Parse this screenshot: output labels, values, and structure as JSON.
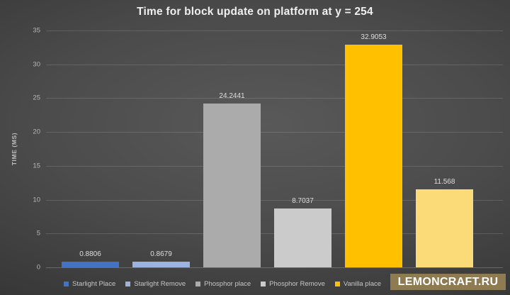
{
  "chart_data": {
    "type": "bar",
    "title": "Time for block update on platform at y = 254",
    "xlabel": "",
    "ylabel": "TIME (MS)",
    "ylim": [
      0,
      35
    ],
    "ytick_step": 5,
    "yticks_top_to_bottom": [
      35,
      30,
      25,
      20,
      15,
      10,
      5,
      0
    ],
    "grid": true,
    "legend_position": "bottom",
    "bars": [
      {
        "name": "Starlight Place",
        "value": 0.8806,
        "label": "0.8806",
        "color": "#4472C4"
      },
      {
        "name": "Starlight Remove",
        "value": 0.8679,
        "label": "0.8679",
        "color": "#9DB3DF"
      },
      {
        "name": "Phosphor place",
        "value": 24.2441,
        "label": "24.2441",
        "color": "#ABABAB"
      },
      {
        "name": "Phosphor Remove",
        "value": 8.7037,
        "label": "8.7037",
        "color": "#CBCBCB"
      },
      {
        "name": "Vanilla place",
        "value": 32.9053,
        "label": "32.9053",
        "color": "#FFC000"
      },
      {
        "name": "",
        "value": 11.568,
        "label": "11.568",
        "color": "#FBDB77"
      }
    ]
  },
  "watermark": {
    "text": "LEMONCRAFT.RU",
    "bg_color": "#8E7B52",
    "text_color": "#FFFFFF"
  }
}
